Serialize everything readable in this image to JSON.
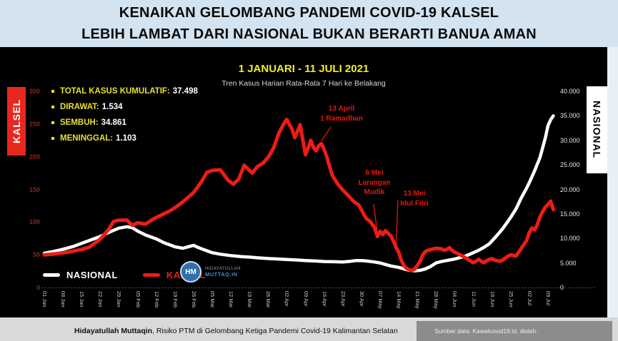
{
  "header": {
    "title_line1": "KENAIKAN GELOMBANG PANDEMI COVID-19 KALSEL",
    "title_line2": "LEBIH LAMBAT DARI NASIONAL BUKAN BERARTI BANUA AMAN"
  },
  "side_labels": {
    "left": "KALSEL",
    "right": "NASIONAL"
  },
  "stats": [
    {
      "label": "TOTAL KASUS KUMULATIF:",
      "value": "37.498"
    },
    {
      "label": "DIRAWAT:",
      "value": "1.534"
    },
    {
      "label": "SEMBUH:",
      "value": "34.861"
    },
    {
      "label": "MENINGGAL:",
      "value": "1.103"
    }
  ],
  "legend": [
    {
      "label": "NASIONAL",
      "color": "#ffffff"
    },
    {
      "label": "KALSEL",
      "color": "#ed1c16"
    }
  ],
  "logo": {
    "initials": "HM",
    "line1": "HIDAYATULLAH",
    "line2": "MUTTAQ.IN"
  },
  "footer": {
    "author": "Hidayatullah Muttaqin",
    "rest": ", Risiko PTM di Gelombang Ketiga Pandemi Covid-19 Kalimantan Selatan",
    "source": "Sumber data: Kawalcovid19.id, diolah."
  },
  "colors": {
    "header_bg": "#d3e3f0",
    "panel_bg": "#000000",
    "accent_red": "#ed1c16",
    "accent_yellow": "#f0ec2a",
    "footer_bg": "#d9d9d9",
    "source_box": "#8c8c8c"
  },
  "chart_data": {
    "type": "line",
    "title": "1 JANUARI - 11 JULI 2021",
    "subtitle": "Tren Kasus Harian Rata-Rata 7 Hari ke Belakang",
    "x_tick_labels": [
      "01 Jan",
      "08 Jan",
      "15 Jan",
      "22 Jan",
      "29 Jan",
      "05 Feb",
      "12 Feb",
      "19 Feb",
      "26 Feb",
      "05 Mar",
      "12 Mar",
      "19 Mar",
      "26 Mar",
      "02 Apr",
      "09 Apr",
      "16 Apr",
      "23 Apr",
      "30 Apr",
      "07 May",
      "14 May",
      "21 May",
      "28 May",
      "04 Jun",
      "11 Jun",
      "18 Jun",
      "25 Jun",
      "02 Jul",
      "09 Jul"
    ],
    "x_tick_interval_days": 7,
    "left_axis": {
      "series": "KALSEL",
      "min": 0,
      "max": 300,
      "step": 50,
      "ticks": [
        "0",
        "50",
        "100",
        "150",
        "200",
        "250",
        "300"
      ]
    },
    "right_axis": {
      "series": "NASIONAL",
      "min": 0,
      "max": 40000,
      "step": 5000,
      "ticks": [
        "0",
        "5.000",
        "10.000",
        "15.000",
        "20.000",
        "25.000",
        "30.000",
        "35.000",
        "40.000"
      ]
    },
    "grid": false,
    "legend_position": "bottom-left",
    "series": [
      {
        "name": "NASIONAL",
        "axis": "right",
        "color": "#ffffff",
        "width": 4.5,
        "points": [
          [
            0,
            7000
          ],
          [
            4,
            7400
          ],
          [
            7,
            7800
          ],
          [
            11,
            8400
          ],
          [
            14,
            9000
          ],
          [
            18,
            9800
          ],
          [
            21,
            10400
          ],
          [
            24,
            11200
          ],
          [
            28,
            12100
          ],
          [
            31,
            12400
          ],
          [
            33,
            12200
          ],
          [
            35,
            11500
          ],
          [
            38,
            10700
          ],
          [
            42,
            9900
          ],
          [
            45,
            9100
          ],
          [
            49,
            8300
          ],
          [
            52,
            8000
          ],
          [
            54,
            8300
          ],
          [
            56,
            8600
          ],
          [
            58,
            8100
          ],
          [
            60,
            7700
          ],
          [
            63,
            7100
          ],
          [
            66,
            6800
          ],
          [
            70,
            6500
          ],
          [
            74,
            6300
          ],
          [
            77,
            6200
          ],
          [
            80,
            6050
          ],
          [
            84,
            5900
          ],
          [
            88,
            5800
          ],
          [
            91,
            5700
          ],
          [
            95,
            5600
          ],
          [
            98,
            5500
          ],
          [
            102,
            5400
          ],
          [
            105,
            5300
          ],
          [
            109,
            5250
          ],
          [
            112,
            5200
          ],
          [
            115,
            5350
          ],
          [
            117,
            5500
          ],
          [
            119,
            5500
          ],
          [
            121,
            5400
          ],
          [
            124,
            5200
          ],
          [
            126,
            5000
          ],
          [
            128,
            4700
          ],
          [
            130,
            4400
          ],
          [
            133,
            4100
          ],
          [
            135,
            3800
          ],
          [
            137,
            3500
          ],
          [
            139,
            3400
          ],
          [
            141,
            3500
          ],
          [
            143,
            3800
          ],
          [
            145,
            4300
          ],
          [
            147,
            5000
          ],
          [
            149,
            5300
          ],
          [
            151,
            5500
          ],
          [
            154,
            5800
          ],
          [
            156,
            6100
          ],
          [
            158,
            6400
          ],
          [
            161,
            7100
          ],
          [
            163,
            7600
          ],
          [
            165,
            8200
          ],
          [
            167,
            8900
          ],
          [
            168,
            9500
          ],
          [
            170,
            10700
          ],
          [
            172,
            12000
          ],
          [
            174,
            13500
          ],
          [
            175,
            14300
          ],
          [
            177,
            16000
          ],
          [
            179,
            18300
          ],
          [
            181,
            20300
          ],
          [
            182,
            21400
          ],
          [
            184,
            23800
          ],
          [
            186,
            26500
          ],
          [
            188,
            30500
          ],
          [
            189,
            33000
          ],
          [
            190,
            34200
          ],
          [
            191,
            35000
          ]
        ]
      },
      {
        "name": "KALSEL",
        "axis": "left",
        "color": "#ed1c16",
        "width": 5,
        "points": [
          [
            0,
            50
          ],
          [
            3,
            51
          ],
          [
            7,
            53
          ],
          [
            10,
            55
          ],
          [
            14,
            58
          ],
          [
            17,
            62
          ],
          [
            21,
            74
          ],
          [
            24,
            88
          ],
          [
            26,
            101
          ],
          [
            28,
            103
          ],
          [
            31,
            103
          ],
          [
            33,
            95
          ],
          [
            35,
            99
          ],
          [
            38,
            97
          ],
          [
            41,
            105
          ],
          [
            44,
            111
          ],
          [
            47,
            117
          ],
          [
            49,
            122
          ],
          [
            52,
            131
          ],
          [
            56,
            145
          ],
          [
            59,
            162
          ],
          [
            61,
            176
          ],
          [
            63,
            179
          ],
          [
            66,
            180
          ],
          [
            69,
            164
          ],
          [
            71,
            158
          ],
          [
            73,
            166
          ],
          [
            75,
            187
          ],
          [
            78,
            175
          ],
          [
            80,
            185
          ],
          [
            82,
            190
          ],
          [
            84,
            199
          ],
          [
            86,
            213
          ],
          [
            88,
            236
          ],
          [
            90,
            251
          ],
          [
            91,
            257
          ],
          [
            92,
            249
          ],
          [
            93,
            242
          ],
          [
            94,
            229
          ],
          [
            95,
            239
          ],
          [
            96,
            249
          ],
          [
            97,
            226
          ],
          [
            98,
            203
          ],
          [
            99,
            213
          ],
          [
            100,
            225
          ],
          [
            101,
            214
          ],
          [
            102,
            209
          ],
          [
            103,
            217
          ],
          [
            104,
            220
          ],
          [
            105,
            211
          ],
          [
            106,
            200
          ],
          [
            107,
            186
          ],
          [
            108,
            172
          ],
          [
            110,
            159
          ],
          [
            112,
            149
          ],
          [
            114,
            141
          ],
          [
            116,
            132
          ],
          [
            118,
            126
          ],
          [
            119,
            119
          ],
          [
            120,
            111
          ],
          [
            121,
            105
          ],
          [
            122,
            102
          ],
          [
            123,
            97
          ],
          [
            124,
            91
          ],
          [
            125,
            78
          ],
          [
            126,
            86
          ],
          [
            127,
            81
          ],
          [
            128,
            87
          ],
          [
            129,
            83
          ],
          [
            130,
            79
          ],
          [
            131,
            71
          ],
          [
            132,
            61
          ],
          [
            133,
            54
          ],
          [
            134,
            41
          ],
          [
            135,
            33
          ],
          [
            136,
            29
          ],
          [
            137,
            27
          ],
          [
            138,
            26
          ],
          [
            139,
            28
          ],
          [
            140,
            34
          ],
          [
            141,
            40
          ],
          [
            142,
            50
          ],
          [
            143,
            55
          ],
          [
            144,
            57
          ],
          [
            146,
            59
          ],
          [
            147,
            60
          ],
          [
            149,
            59
          ],
          [
            150,
            57
          ],
          [
            151,
            58
          ],
          [
            152,
            61
          ],
          [
            153,
            57
          ],
          [
            154,
            54
          ],
          [
            155,
            52
          ],
          [
            157,
            48
          ],
          [
            159,
            43
          ],
          [
            161,
            38
          ],
          [
            162,
            40
          ],
          [
            163,
            43
          ],
          [
            164,
            40
          ],
          [
            165,
            38
          ],
          [
            166,
            41
          ],
          [
            167,
            43
          ],
          [
            168,
            44
          ],
          [
            169,
            42
          ],
          [
            171,
            40
          ],
          [
            172,
            42
          ],
          [
            173,
            45
          ],
          [
            174,
            48
          ],
          [
            175,
            50
          ],
          [
            176,
            49
          ],
          [
            177,
            48
          ],
          [
            178,
            54
          ],
          [
            179,
            60
          ],
          [
            180,
            66
          ],
          [
            181,
            72
          ],
          [
            182,
            84
          ],
          [
            183,
            91
          ],
          [
            184,
            88
          ],
          [
            185,
            96
          ],
          [
            186,
            108
          ],
          [
            187,
            116
          ],
          [
            188,
            123
          ],
          [
            189,
            127
          ],
          [
            190,
            132
          ],
          [
            191,
            119
          ]
        ]
      }
    ],
    "annotations": [
      {
        "lines": [
          "13 April",
          "1 Ramadhan"
        ],
        "day": 104,
        "value": 220
      },
      {
        "lines": [
          "6 Mei",
          "Larangan",
          "Mudik"
        ],
        "day": 125,
        "value": 78
      },
      {
        "lines": [
          "13 Mei",
          "Idul Fitri"
        ],
        "day": 132,
        "value": 61
      }
    ]
  }
}
